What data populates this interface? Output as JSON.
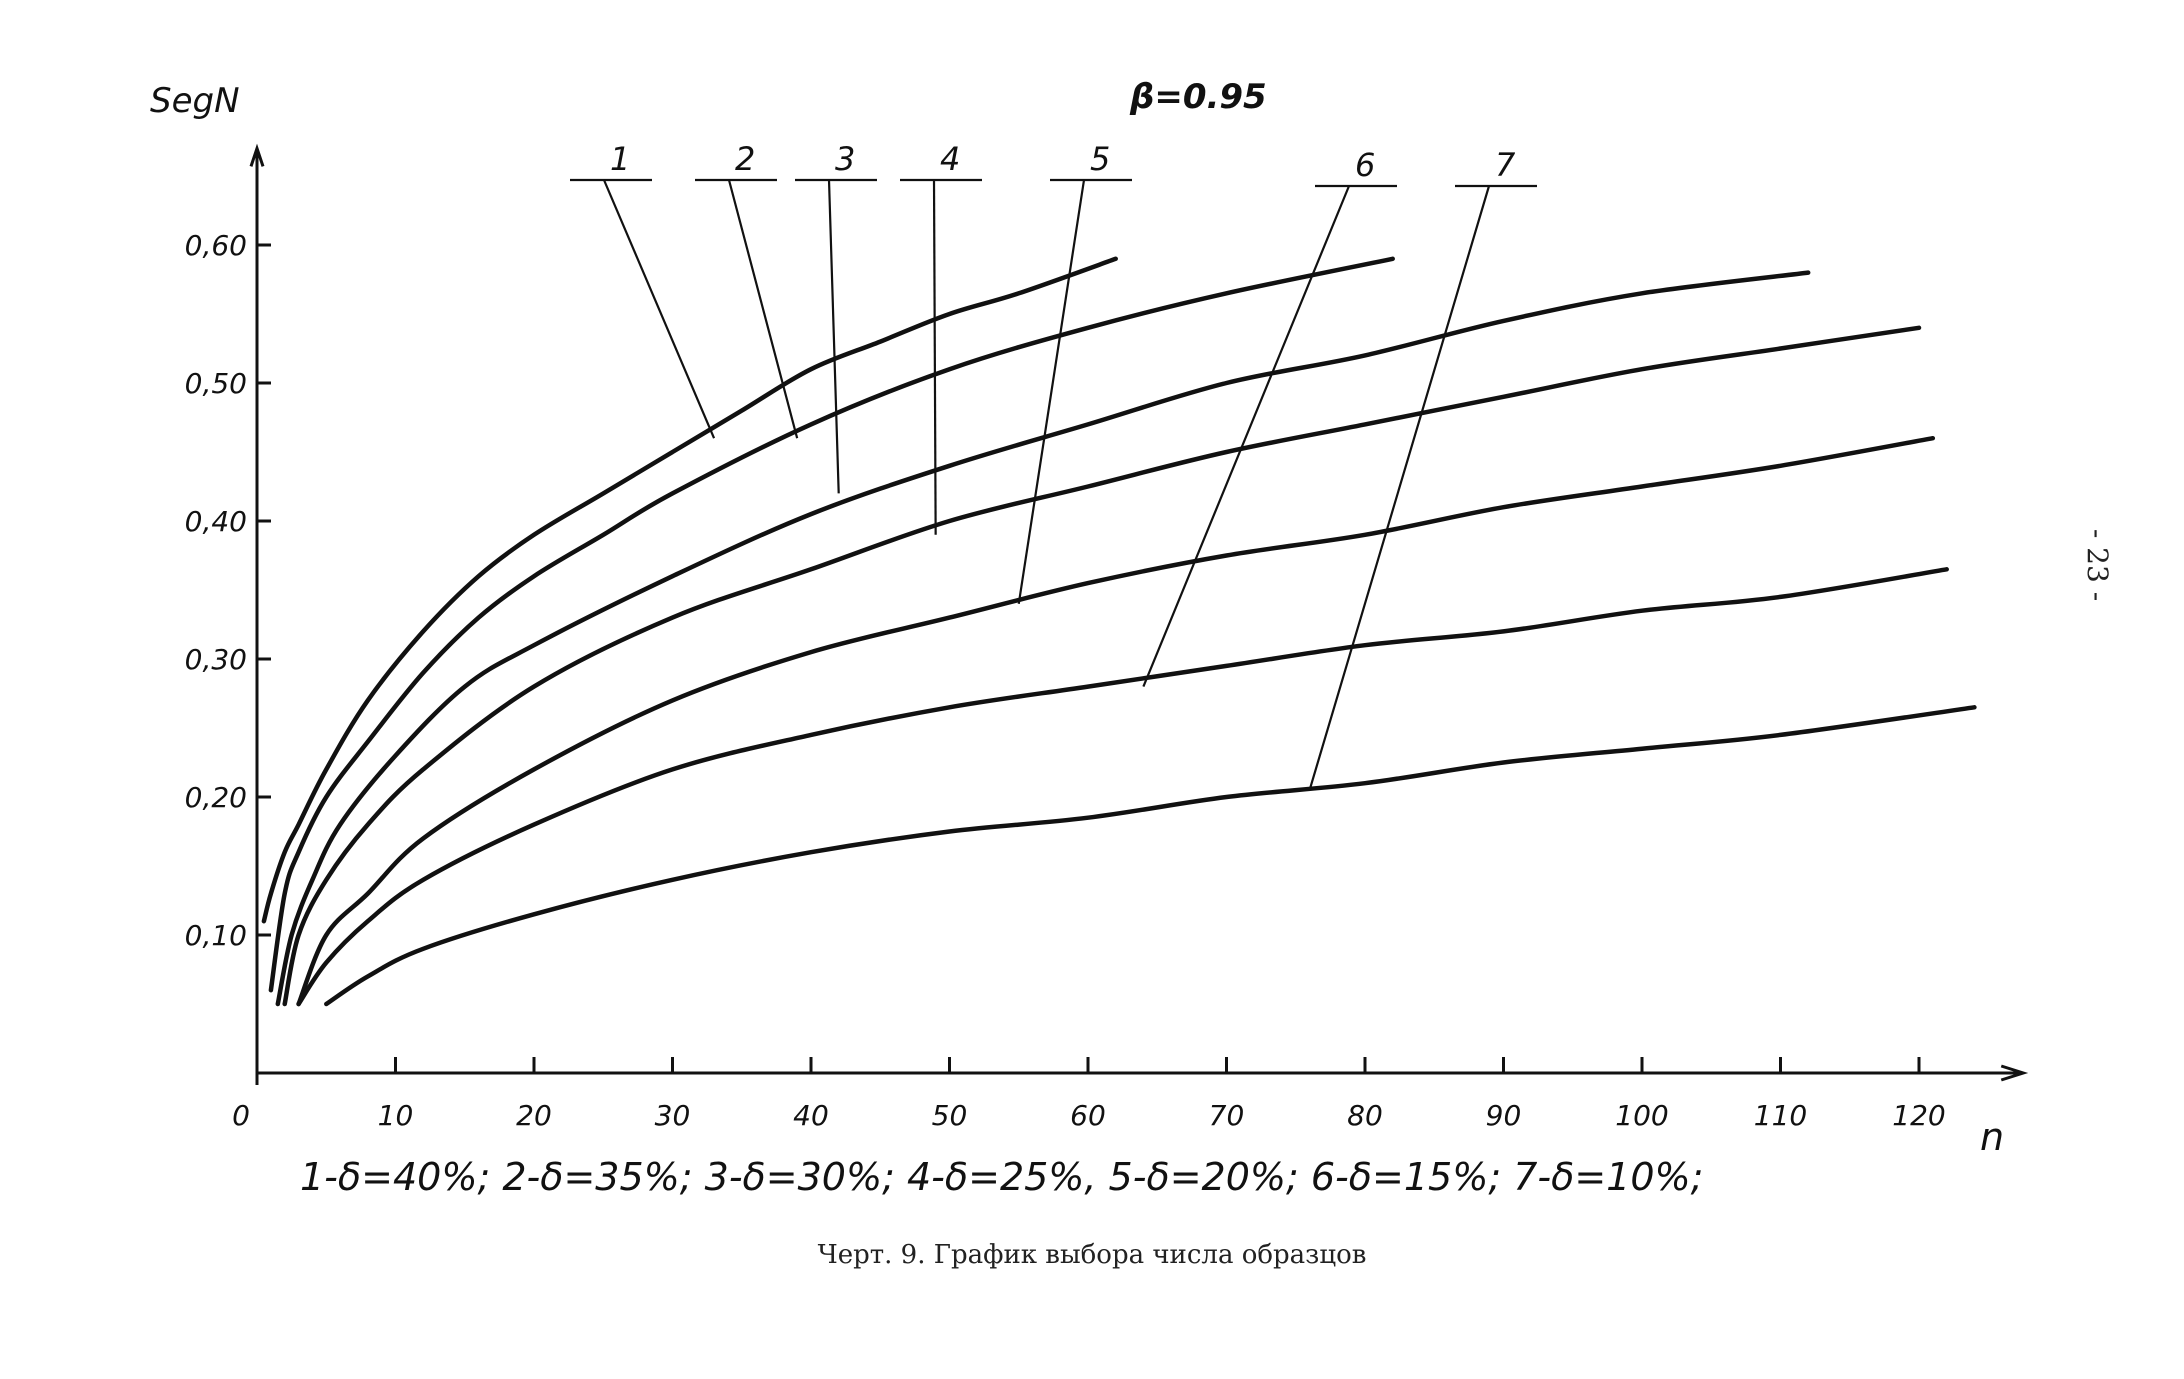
{
  "page_number": "- 23 -",
  "caption": "Черт. 9. График выбора числа образцов",
  "legend_text": "1-δ=40%;  2-δ=35%;  3-δ=30%;  4-δ=25%,  5-δ=20%; 6-δ=15%;  7-δ=10%;",
  "chart_data": {
    "type": "line",
    "annotation": "β=0.95",
    "xlabel": "n",
    "ylabel": "SegN",
    "xlim": [
      0,
      125
    ],
    "ylim": [
      -0.01,
      0.67
    ],
    "x_ticks": [
      {
        "value": 0,
        "label": "0"
      },
      {
        "value": 10,
        "label": "10"
      },
      {
        "value": 20,
        "label": "20"
      },
      {
        "value": 30,
        "label": "30"
      },
      {
        "value": 40,
        "label": "40"
      },
      {
        "value": 50,
        "label": "50"
      },
      {
        "value": 60,
        "label": "60"
      },
      {
        "value": 70,
        "label": "70"
      },
      {
        "value": 80,
        "label": "80"
      },
      {
        "value": 90,
        "label": "90"
      },
      {
        "value": 100,
        "label": "100"
      },
      {
        "value": 110,
        "label": "110"
      },
      {
        "value": 120,
        "label": "120"
      }
    ],
    "y_ticks": [
      {
        "value": 0.1,
        "label": "0,10"
      },
      {
        "value": 0.2,
        "label": "0,20"
      },
      {
        "value": 0.3,
        "label": "0,30"
      },
      {
        "value": 0.4,
        "label": "0,40"
      },
      {
        "value": 0.5,
        "label": "0,50"
      },
      {
        "value": 0.6,
        "label": "0,60"
      }
    ],
    "series": [
      {
        "name": "1",
        "x": [
          0.5,
          1,
          2,
          3,
          5,
          8,
          12,
          16,
          20,
          25,
          30,
          35,
          40,
          45,
          50,
          55,
          62
        ],
        "y": [
          0.11,
          0.13,
          0.16,
          0.18,
          0.22,
          0.27,
          0.32,
          0.36,
          0.39,
          0.42,
          0.45,
          0.48,
          0.51,
          0.53,
          0.55,
          0.565,
          0.59
        ]
      },
      {
        "name": "2",
        "x": [
          1,
          2,
          3,
          5,
          8,
          12,
          16,
          20,
          25,
          30,
          40,
          50,
          60,
          70,
          82
        ],
        "y": [
          0.06,
          0.13,
          0.16,
          0.2,
          0.24,
          0.29,
          0.33,
          0.36,
          0.39,
          0.42,
          0.47,
          0.51,
          0.54,
          0.565,
          0.59
        ]
      },
      {
        "name": "3",
        "x": [
          1.5,
          2.5,
          4,
          6,
          10,
          15,
          20,
          30,
          40,
          50,
          60,
          70,
          80,
          90,
          100,
          112
        ],
        "y": [
          0.05,
          0.1,
          0.14,
          0.18,
          0.23,
          0.28,
          0.31,
          0.36,
          0.405,
          0.44,
          0.47,
          0.5,
          0.52,
          0.545,
          0.565,
          0.58
        ]
      },
      {
        "name": "4",
        "x": [
          2,
          3,
          5,
          8,
          12,
          20,
          30,
          40,
          50,
          60,
          70,
          80,
          90,
          100,
          110,
          120
        ],
        "y": [
          0.05,
          0.1,
          0.14,
          0.18,
          0.22,
          0.28,
          0.33,
          0.365,
          0.4,
          0.425,
          0.45,
          0.47,
          0.49,
          0.51,
          0.525,
          0.54
        ]
      },
      {
        "name": "5",
        "x": [
          3,
          5,
          8,
          12,
          20,
          30,
          40,
          50,
          60,
          70,
          80,
          90,
          100,
          110,
          121
        ],
        "y": [
          0.05,
          0.1,
          0.13,
          0.17,
          0.22,
          0.27,
          0.305,
          0.33,
          0.355,
          0.375,
          0.39,
          0.41,
          0.425,
          0.44,
          0.46
        ]
      },
      {
        "name": "6",
        "x": [
          3,
          5,
          8,
          12,
          20,
          30,
          40,
          50,
          60,
          70,
          80,
          90,
          100,
          110,
          122
        ],
        "y": [
          0.05,
          0.08,
          0.11,
          0.14,
          0.18,
          0.22,
          0.245,
          0.265,
          0.28,
          0.295,
          0.31,
          0.32,
          0.335,
          0.345,
          0.365
        ]
      },
      {
        "name": "7",
        "x": [
          5,
          8,
          12,
          20,
          30,
          40,
          50,
          60,
          70,
          80,
          90,
          100,
          110,
          124
        ],
        "y": [
          0.05,
          0.07,
          0.09,
          0.115,
          0.14,
          0.16,
          0.175,
          0.185,
          0.2,
          0.21,
          0.225,
          0.235,
          0.245,
          0.265
        ]
      }
    ],
    "callouts": [
      {
        "label": "1",
        "point_x": 33,
        "point_y": 0.46
      },
      {
        "label": "2",
        "point_x": 39,
        "point_y": 0.46
      },
      {
        "label": "3",
        "point_x": 42,
        "point_y": 0.42
      },
      {
        "label": "4",
        "point_x": 49,
        "point_y": 0.39
      },
      {
        "label": "5",
        "point_x": 55,
        "point_y": 0.34
      },
      {
        "label": "6",
        "point_x": 64,
        "point_y": 0.28
      },
      {
        "label": "7",
        "point_x": 76,
        "point_y": 0.205
      }
    ],
    "grid": false
  }
}
